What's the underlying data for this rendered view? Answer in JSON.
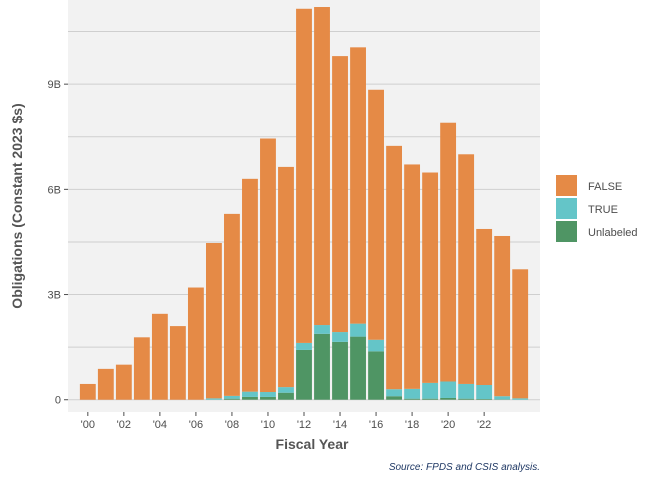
{
  "chart_data": {
    "type": "bar",
    "stacked": true,
    "xlabel": "Fiscal Year",
    "ylabel": "Obligations (Constant 2023 $s)",
    "caption": "Source: FPDS and CSIS analysis.",
    "x": [
      2000,
      2001,
      2002,
      2003,
      2004,
      2005,
      2006,
      2007,
      2008,
      2009,
      2010,
      2011,
      2012,
      2013,
      2014,
      2015,
      2016,
      2017,
      2018,
      2019,
      2020,
      2021,
      2022,
      2023,
      2024
    ],
    "x_tick_values": [
      2000,
      2002,
      2004,
      2006,
      2008,
      2010,
      2012,
      2014,
      2016,
      2018,
      2020,
      2022
    ],
    "x_tick_labels": [
      "'00",
      "'02",
      "'04",
      "'06",
      "'08",
      "'10",
      "'12",
      "'14",
      "'16",
      "'18",
      "'20",
      "'22"
    ],
    "y_ticks": [
      0,
      3,
      6,
      9
    ],
    "y_tick_labels": [
      "0",
      "3B",
      "6B",
      "9B"
    ],
    "ylim": [
      -0.35,
      11.4
    ],
    "y_unit": "billions",
    "grid": true,
    "legend_position": "right",
    "series": [
      {
        "name": "Unlabeled",
        "color": "#4f9564",
        "values": [
          0,
          0,
          0,
          0,
          0,
          0,
          0,
          0,
          0.03,
          0.08,
          0.08,
          0.2,
          1.42,
          1.88,
          1.65,
          1.8,
          1.38,
          0.1,
          0.03,
          0.03,
          0.05,
          0.03,
          0.02,
          0.01,
          0
        ]
      },
      {
        "name": "TRUE",
        "color": "#64c5c8",
        "values": [
          0,
          0,
          0,
          0,
          0,
          0,
          0,
          0.04,
          0.08,
          0.15,
          0.14,
          0.16,
          0.2,
          0.25,
          0.28,
          0.37,
          0.33,
          0.2,
          0.28,
          0.45,
          0.47,
          0.42,
          0.4,
          0.09,
          0.04
        ]
      },
      {
        "name": "FALSE",
        "color": "#e58a46",
        "values": [
          0.45,
          0.88,
          1.0,
          1.78,
          2.45,
          2.1,
          3.2,
          4.43,
          5.19,
          6.07,
          7.23,
          6.28,
          9.53,
          9.07,
          7.87,
          7.88,
          7.13,
          6.94,
          6.4,
          6.0,
          7.38,
          6.55,
          4.45,
          4.57,
          3.68
        ]
      }
    ],
    "legend_order": [
      "FALSE",
      "TRUE",
      "Unlabeled"
    ]
  }
}
